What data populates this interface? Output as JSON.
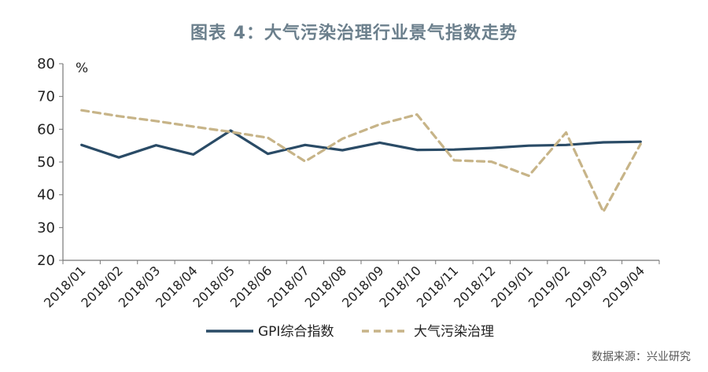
{
  "colors": {
    "gpi": "#2a4b66",
    "air": "#c7b488",
    "title": "#6b7f8c",
    "axis": "#777777"
  },
  "chart_data": {
    "type": "line",
    "title": "图表 4：大气污染治理行业景气指数走势",
    "ylabel": "%",
    "xlabel": "",
    "ylim": [
      20,
      80
    ],
    "yticks": [
      20,
      30,
      40,
      50,
      60,
      70,
      80
    ],
    "grid": false,
    "legend_position": "bottom",
    "categories": [
      "2018/01",
      "2018/02",
      "2018/03",
      "2018/04",
      "2018/05",
      "2018/06",
      "2018/07",
      "2018/08",
      "2018/09",
      "2018/10",
      "2018/11",
      "2018/12",
      "2019/01",
      "2019/02",
      "2019/03",
      "2019/04"
    ],
    "series": [
      {
        "name": "GPI综合指数",
        "style": "solid",
        "values": [
          55.2,
          51.4,
          55.1,
          52.3,
          59.6,
          52.5,
          55.2,
          53.6,
          55.9,
          53.7,
          53.8,
          54.3,
          55.0,
          55.2,
          56.0,
          56.2
        ]
      },
      {
        "name": "大气污染治理",
        "style": "dashed",
        "values": [
          65.8,
          64.0,
          62.5,
          60.8,
          59.2,
          57.4,
          50.2,
          57.1,
          61.5,
          64.5,
          50.5,
          50.1,
          45.8,
          59.0,
          34.8,
          55.5
        ]
      }
    ]
  },
  "source": "数据来源：兴业研究"
}
